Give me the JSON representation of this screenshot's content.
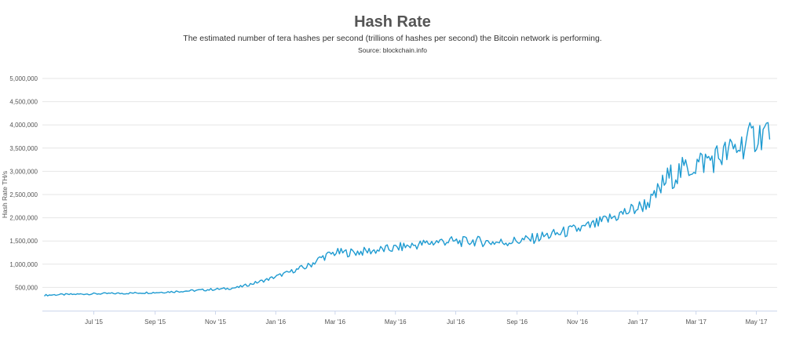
{
  "chart_data": {
    "type": "line",
    "title": "Hash Rate",
    "subtitle": "The estimated number of tera hashes per second (trillions of hashes per second) the Bitcoin network is performing.",
    "source": "Source: blockchain.info",
    "xlabel": "",
    "ylabel": "Hash Rate TH/s",
    "ylim": [
      0,
      5000000
    ],
    "yticks": [
      500000,
      1000000,
      1500000,
      2000000,
      2500000,
      3000000,
      3500000,
      4000000,
      4500000,
      5000000
    ],
    "ytick_labels": [
      "500,000",
      "1,000,000",
      "1,500,000",
      "2,000,000",
      "2,500,000",
      "3,000,000",
      "3,500,000",
      "4,000,000",
      "4,500,000",
      "5,000,000"
    ],
    "xlim": [
      "2015-05-10",
      "2017-05-22"
    ],
    "xticks": [
      "2015-07-01",
      "2015-09-01",
      "2015-11-01",
      "2016-01-01",
      "2016-03-01",
      "2016-05-01",
      "2016-07-01",
      "2016-09-01",
      "2016-11-01",
      "2017-01-01",
      "2017-03-01",
      "2017-05-01"
    ],
    "xtick_labels": [
      "Jul '15",
      "Sep '15",
      "Nov '15",
      "Jan '16",
      "Mar '16",
      "May '16",
      "Jul '16",
      "Sep '16",
      "Nov '16",
      "Jan '17",
      "Mar '17",
      "May '17"
    ],
    "grid": true,
    "line_color": "#1f9bd1",
    "series": [
      {
        "x": [
          "2015-05-12",
          "2015-05-26",
          "2015-06-09",
          "2015-06-23",
          "2015-07-07",
          "2015-07-21",
          "2015-08-04",
          "2015-08-18",
          "2015-09-01",
          "2015-09-15",
          "2015-09-29",
          "2015-10-13",
          "2015-10-27",
          "2015-11-10",
          "2015-11-24",
          "2015-12-08",
          "2015-12-22",
          "2016-01-05",
          "2016-01-19",
          "2016-02-02",
          "2016-02-16",
          "2016-03-01",
          "2016-03-15",
          "2016-03-29",
          "2016-04-12",
          "2016-04-26",
          "2016-05-10",
          "2016-05-24",
          "2016-06-07",
          "2016-06-21",
          "2016-07-05",
          "2016-07-19",
          "2016-08-02",
          "2016-08-16",
          "2016-08-30",
          "2016-09-13",
          "2016-09-27",
          "2016-10-11",
          "2016-10-25",
          "2016-11-08",
          "2016-11-22",
          "2016-12-06",
          "2016-12-20",
          "2017-01-03",
          "2017-01-17",
          "2017-01-31",
          "2017-02-14",
          "2017-02-28",
          "2017-03-14",
          "2017-03-28",
          "2017-04-11",
          "2017-04-25",
          "2017-05-09",
          "2017-05-15"
        ],
        "values": [
          330000,
          345000,
          350000,
          360000,
          365000,
          370000,
          375000,
          385000,
          390000,
          405000,
          420000,
          435000,
          455000,
          470000,
          500000,
          580000,
          660000,
          760000,
          860000,
          950000,
          1140000,
          1250000,
          1250000,
          1270000,
          1300000,
          1330000,
          1380000,
          1420000,
          1470000,
          1500000,
          1480000,
          1500000,
          1480000,
          1470000,
          1500000,
          1530000,
          1600000,
          1650000,
          1720000,
          1780000,
          1870000,
          2000000,
          2120000,
          2230000,
          2400000,
          2850000,
          3000000,
          3150000,
          3250000,
          3350000,
          3500000,
          3700000,
          3850000,
          3900000
        ]
      }
    ]
  }
}
